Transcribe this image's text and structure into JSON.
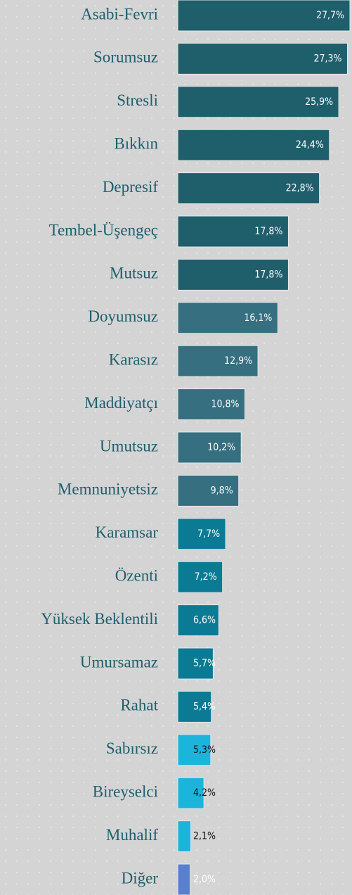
{
  "chart_data": {
    "type": "bar",
    "orientation": "horizontal",
    "categories": [
      "Asabi-Fevri",
      "Sorumsuz",
      "Stresli",
      "Bıkkın",
      "Depresif",
      "Tembel-Üşengeç",
      "Mutsuz",
      "Doyumsuz",
      "Karasız",
      "Maddiyatçı",
      "Umutsuz",
      "Memnuniyetsiz",
      "Karamsar",
      "Özenti",
      "Yüksek Beklentili",
      "Umursamaz",
      "Rahat",
      "Sabırsız",
      "Bireyselci",
      "Muhalif",
      "Diğer"
    ],
    "values": [
      27.7,
      27.3,
      25.9,
      24.4,
      22.8,
      17.8,
      17.8,
      16.1,
      12.9,
      10.8,
      10.2,
      9.8,
      7.7,
      7.2,
      6.6,
      5.7,
      5.4,
      5.3,
      4.2,
      2.1,
      2.0
    ],
    "value_labels": [
      "27,7%",
      "27,3%",
      "25,9%",
      "24,4%",
      "22,8%",
      "17,8%",
      "17,8%",
      "16,1%",
      "12,9%",
      "10,8%",
      "10,2%",
      "9,8%",
      "7,7%",
      "7,2%",
      "6,6%",
      "5,7%",
      "5,4%",
      "5,3%",
      "4,2%",
      "2,1%",
      "2,0%"
    ],
    "colors": [
      "#1f5f6c",
      "#1f5f6c",
      "#1f5f6c",
      "#1f5f6c",
      "#1f5f6c",
      "#1f5f6c",
      "#1f5f6c",
      "#356f80",
      "#356f80",
      "#356f80",
      "#356f80",
      "#356f80",
      "#0b7a94",
      "#0b7a94",
      "#0b7a94",
      "#0b7a94",
      "#0b7a94",
      "#1db4dc",
      "#1db4dc",
      "#1db4dc",
      "#5b7fd0"
    ]
  }
}
